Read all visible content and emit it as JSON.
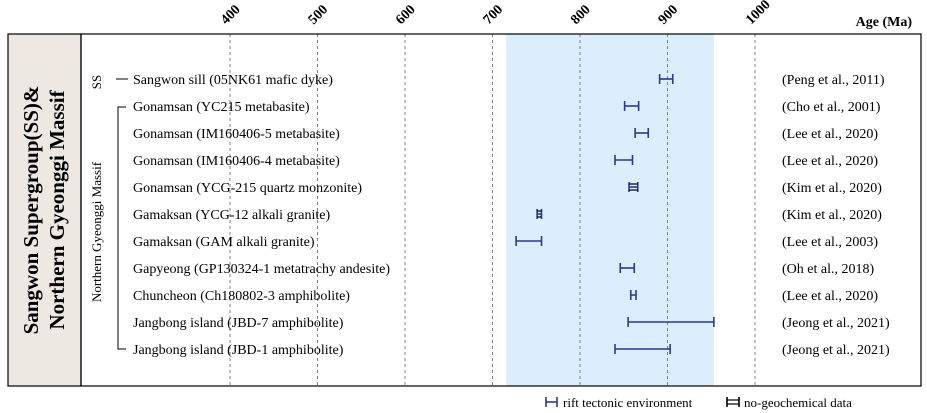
{
  "chart_data": {
    "type": "range",
    "x_axis_title": "Age (Ma)",
    "x_ticks": [
      400,
      500,
      600,
      700,
      800,
      900,
      1000
    ],
    "x_range": [
      400,
      1000
    ],
    "vertical_title_line1": "Sangwon Supergroup(SS)&",
    "vertical_title_line2": "Northern Gyeonggi Massif",
    "group_labels": {
      "ss": "SS",
      "ngm": "Northern Gyeonggi Massif"
    },
    "highlight_range": [
      727,
      953
    ],
    "rows": [
      {
        "label": "Sangwon sill (05NK61 mafic dyke)",
        "ref": "(Peng et al., 2011)",
        "min": 891,
        "max": 906,
        "group": "ss",
        "style": "rift"
      },
      {
        "label": "Gonamsan (YC215 metabasite)",
        "ref": "(Cho et al., 2001)",
        "min": 851,
        "max": 867,
        "group": "ngm",
        "style": "rift"
      },
      {
        "label": "Gonamsan (IM160406-5 metabasite)",
        "ref": "(Lee et al., 2020)",
        "min": 863,
        "max": 878,
        "group": "ngm",
        "style": "rift"
      },
      {
        "label": "Gonamsan (IM160406-4 metabasite)",
        "ref": "(Lee et al., 2020)",
        "min": 840,
        "max": 860,
        "group": "ngm",
        "style": "rift"
      },
      {
        "label": "Gonamsan (YCG-215 quartz monzonite)",
        "ref": "(Kim et al., 2020)",
        "min": 856,
        "max": 866,
        "group": "ngm",
        "style": "nogeo"
      },
      {
        "label": "Gamaksan (YCG-12 alkali granite)",
        "ref": "(Kim et al., 2020)",
        "min": 751,
        "max": 756,
        "group": "ngm",
        "style": "nogeo"
      },
      {
        "label": "Gamaksan (GAM alkali granite)",
        "ref": "(Lee et al., 2003)",
        "min": 727,
        "max": 756,
        "group": "ngm",
        "style": "rift"
      },
      {
        "label": "Gapyeong (GP130324-1 metatrachy andesite)",
        "ref": "(Oh et al., 2018)",
        "min": 846,
        "max": 862,
        "group": "ngm",
        "style": "rift"
      },
      {
        "label": "Chuncheon (Ch180802-3 amphibolite)",
        "ref": "(Lee et al., 2020)",
        "min": 858,
        "max": 864,
        "group": "ngm",
        "style": "rift"
      },
      {
        "label": "Jangbong island (JBD-7 amphibolite)",
        "ref": "(Jeong et al., 2021)",
        "min": 855,
        "max": 953,
        "group": "ngm",
        "style": "rift"
      },
      {
        "label": "Jangbong island (JBD-1 amphibolite)",
        "ref": "(Jeong et al., 2021)",
        "min": 840,
        "max": 903,
        "group": "ngm",
        "style": "rift"
      }
    ],
    "legend": [
      {
        "label": "rift tectonic environment",
        "style": "rift"
      },
      {
        "label": "no-geochemical data",
        "style": "nogeo"
      }
    ],
    "colors": {
      "bar": "#2b3a8a",
      "highlight": "#dcedfb",
      "side_panel": "#ede8e2",
      "grid": "#7f7f7f"
    }
  }
}
